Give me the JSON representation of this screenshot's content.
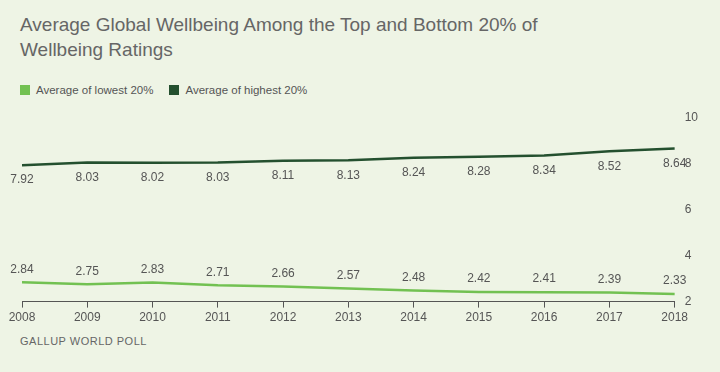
{
  "chart_data": {
    "type": "line",
    "title": "Average Global Wellbeing Among the Top and Bottom 20% of Wellbeing Ratings",
    "source": "GALLUP WORLD POLL",
    "categories": [
      "2008",
      "2009",
      "2010",
      "2011",
      "2012",
      "2013",
      "2014",
      "2015",
      "2016",
      "2017",
      "2018"
    ],
    "series": [
      {
        "name": "Average of lowest 20%",
        "color": "#72c152",
        "values": [
          2.84,
          2.75,
          2.83,
          2.71,
          2.66,
          2.57,
          2.48,
          2.42,
          2.41,
          2.39,
          2.33
        ]
      },
      {
        "name": "Average of highest 20%",
        "color": "#24502f",
        "values": [
          7.92,
          8.03,
          8.02,
          8.03,
          8.11,
          8.13,
          8.24,
          8.28,
          8.34,
          8.52,
          8.64
        ]
      }
    ],
    "ylim": [
      2,
      10
    ],
    "yticks": [
      2,
      4,
      6,
      8,
      10
    ],
    "grid": false,
    "legend": "top-left",
    "data_labels": true
  }
}
